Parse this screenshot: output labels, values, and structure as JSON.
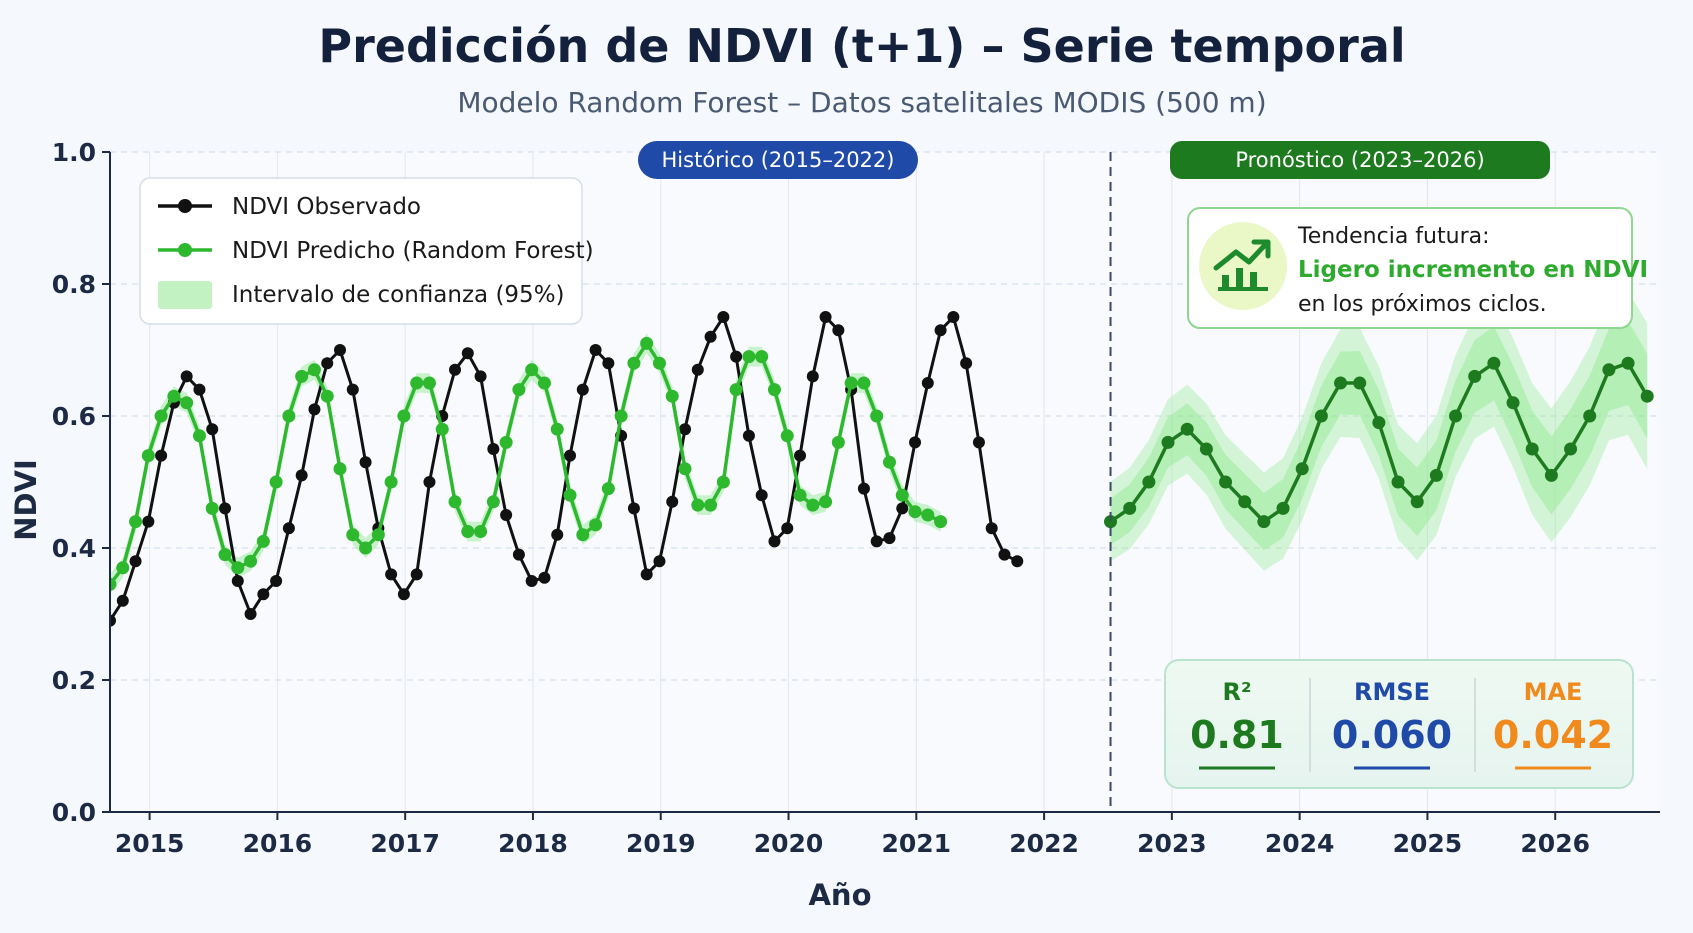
{
  "chart_data": {
    "type": "line",
    "title": "Predicción de NDVI (t+1) – Serie temporal",
    "subtitle": "Modelo Random Forest – Datos satelitales MODIS (500 m)",
    "xlabel": "Año",
    "ylabel": "NDVI",
    "x_ticks": [
      "2015",
      "2016",
      "2017",
      "2018",
      "2019",
      "2020",
      "2021",
      "2022",
      "2023",
      "2024",
      "2025",
      "2026"
    ],
    "ylim": [
      0.0,
      1.0
    ],
    "y_ticks": [
      "0.0",
      "0.2",
      "0.4",
      "0.6",
      "0.8",
      "1.0"
    ],
    "grid": true,
    "legend_position": "top-left",
    "forecast_start": 2022.65,
    "period_labels": {
      "historical": "Histórico (2015–2022)",
      "forecast": "Pronóstico (2023–2026)"
    },
    "legend": {
      "observed": "NDVI Observado",
      "predicted": "NDVI Predicho (Random Forest)",
      "ci": "Intervalo de confianza (95%)"
    },
    "series": [
      {
        "name": "NDVI Observado",
        "color": "#111111",
        "points": [
          [
            2014.82,
            0.29
          ],
          [
            2014.92,
            0.32
          ],
          [
            2015.02,
            0.38
          ],
          [
            2015.12,
            0.44
          ],
          [
            2015.22,
            0.54
          ],
          [
            2015.32,
            0.62
          ],
          [
            2015.42,
            0.66
          ],
          [
            2015.52,
            0.64
          ],
          [
            2015.62,
            0.58
          ],
          [
            2015.72,
            0.46
          ],
          [
            2015.82,
            0.35
          ],
          [
            2015.92,
            0.3
          ],
          [
            2016.02,
            0.33
          ],
          [
            2016.12,
            0.35
          ],
          [
            2016.22,
            0.43
          ],
          [
            2016.32,
            0.51
          ],
          [
            2016.42,
            0.61
          ],
          [
            2016.52,
            0.68
          ],
          [
            2016.62,
            0.7
          ],
          [
            2016.72,
            0.64
          ],
          [
            2016.82,
            0.53
          ],
          [
            2016.92,
            0.43
          ],
          [
            2017.02,
            0.36
          ],
          [
            2017.12,
            0.33
          ],
          [
            2017.22,
            0.36
          ],
          [
            2017.32,
            0.5
          ],
          [
            2017.42,
            0.6
          ],
          [
            2017.52,
            0.67
          ],
          [
            2017.62,
            0.695
          ],
          [
            2017.72,
            0.66
          ],
          [
            2017.82,
            0.55
          ],
          [
            2017.92,
            0.45
          ],
          [
            2018.02,
            0.39
          ],
          [
            2018.12,
            0.35
          ],
          [
            2018.22,
            0.355
          ],
          [
            2018.32,
            0.42
          ],
          [
            2018.42,
            0.54
          ],
          [
            2018.52,
            0.64
          ],
          [
            2018.62,
            0.7
          ],
          [
            2018.72,
            0.68
          ],
          [
            2018.82,
            0.57
          ],
          [
            2018.92,
            0.46
          ],
          [
            2019.02,
            0.36
          ],
          [
            2019.12,
            0.38
          ],
          [
            2019.22,
            0.47
          ],
          [
            2019.32,
            0.58
          ],
          [
            2019.42,
            0.67
          ],
          [
            2019.52,
            0.72
          ],
          [
            2019.62,
            0.75
          ],
          [
            2019.72,
            0.69
          ],
          [
            2019.82,
            0.57
          ],
          [
            2019.92,
            0.48
          ],
          [
            2020.02,
            0.41
          ],
          [
            2020.12,
            0.43
          ],
          [
            2020.22,
            0.54
          ],
          [
            2020.32,
            0.66
          ],
          [
            2020.42,
            0.75
          ],
          [
            2020.52,
            0.73
          ],
          [
            2020.62,
            0.64
          ],
          [
            2020.72,
            0.49
          ],
          [
            2020.82,
            0.41
          ],
          [
            2020.92,
            0.415
          ],
          [
            2021.02,
            0.46
          ],
          [
            2021.12,
            0.56
          ],
          [
            2021.22,
            0.65
          ],
          [
            2021.32,
            0.73
          ],
          [
            2021.42,
            0.75
          ],
          [
            2021.52,
            0.68
          ],
          [
            2021.62,
            0.56
          ],
          [
            2021.72,
            0.43
          ],
          [
            2021.82,
            0.39
          ],
          [
            2021.92,
            0.38
          ]
        ]
      },
      {
        "name": "NDVI Predicho (Random Forest)",
        "color": "#2eb82e",
        "points": [
          [
            2014.82,
            0.345
          ],
          [
            2014.92,
            0.37
          ],
          [
            2015.02,
            0.44
          ],
          [
            2015.12,
            0.54
          ],
          [
            2015.22,
            0.6
          ],
          [
            2015.32,
            0.63
          ],
          [
            2015.42,
            0.62
          ],
          [
            2015.52,
            0.57
          ],
          [
            2015.62,
            0.46
          ],
          [
            2015.72,
            0.39
          ],
          [
            2015.82,
            0.37
          ],
          [
            2015.92,
            0.38
          ],
          [
            2016.02,
            0.41
          ],
          [
            2016.12,
            0.5
          ],
          [
            2016.22,
            0.6
          ],
          [
            2016.32,
            0.66
          ],
          [
            2016.42,
            0.67
          ],
          [
            2016.52,
            0.63
          ],
          [
            2016.62,
            0.52
          ],
          [
            2016.72,
            0.42
          ],
          [
            2016.82,
            0.4
          ],
          [
            2016.92,
            0.42
          ],
          [
            2017.02,
            0.5
          ],
          [
            2017.12,
            0.6
          ],
          [
            2017.22,
            0.65
          ],
          [
            2017.32,
            0.65
          ],
          [
            2017.42,
            0.58
          ],
          [
            2017.52,
            0.47
          ],
          [
            2017.62,
            0.425
          ],
          [
            2017.72,
            0.425
          ],
          [
            2017.82,
            0.47
          ],
          [
            2017.92,
            0.56
          ],
          [
            2018.02,
            0.64
          ],
          [
            2018.12,
            0.67
          ],
          [
            2018.22,
            0.65
          ],
          [
            2018.32,
            0.58
          ],
          [
            2018.42,
            0.48
          ],
          [
            2018.52,
            0.42
          ],
          [
            2018.62,
            0.435
          ],
          [
            2018.72,
            0.49
          ],
          [
            2018.82,
            0.6
          ],
          [
            2018.92,
            0.68
          ],
          [
            2019.02,
            0.71
          ],
          [
            2019.12,
            0.68
          ],
          [
            2019.22,
            0.63
          ],
          [
            2019.32,
            0.52
          ],
          [
            2019.42,
            0.465
          ],
          [
            2019.52,
            0.465
          ],
          [
            2019.62,
            0.5
          ],
          [
            2019.72,
            0.64
          ],
          [
            2019.82,
            0.69
          ],
          [
            2019.92,
            0.69
          ],
          [
            2020.02,
            0.64
          ],
          [
            2020.12,
            0.57
          ],
          [
            2020.22,
            0.48
          ],
          [
            2020.32,
            0.465
          ],
          [
            2020.42,
            0.47
          ],
          [
            2020.52,
            0.56
          ],
          [
            2020.62,
            0.65
          ],
          [
            2020.72,
            0.65
          ],
          [
            2020.82,
            0.6
          ],
          [
            2020.92,
            0.53
          ],
          [
            2021.02,
            0.48
          ],
          [
            2021.12,
            0.455
          ],
          [
            2021.22,
            0.45
          ],
          [
            2021.32,
            0.44
          ]
        ]
      },
      {
        "name": "Forecast",
        "color": "#1e7a1e",
        "points": [
          [
            2022.65,
            0.44
          ],
          [
            2022.8,
            0.46
          ],
          [
            2022.95,
            0.5
          ],
          [
            2023.1,
            0.56
          ],
          [
            2023.25,
            0.58
          ],
          [
            2023.4,
            0.55
          ],
          [
            2023.55,
            0.5
          ],
          [
            2023.7,
            0.47
          ],
          [
            2023.85,
            0.44
          ],
          [
            2024.0,
            0.46
          ],
          [
            2024.15,
            0.52
          ],
          [
            2024.3,
            0.6
          ],
          [
            2024.45,
            0.65
          ],
          [
            2024.6,
            0.65
          ],
          [
            2024.75,
            0.59
          ],
          [
            2024.9,
            0.5
          ],
          [
            2025.05,
            0.47
          ],
          [
            2025.2,
            0.51
          ],
          [
            2025.35,
            0.6
          ],
          [
            2025.5,
            0.66
          ],
          [
            2025.65,
            0.68
          ],
          [
            2025.8,
            0.62
          ],
          [
            2025.95,
            0.55
          ],
          [
            2026.1,
            0.51
          ],
          [
            2026.25,
            0.55
          ],
          [
            2026.4,
            0.6
          ],
          [
            2026.55,
            0.67
          ],
          [
            2026.7,
            0.68
          ],
          [
            2026.85,
            0.63
          ]
        ]
      }
    ],
    "metrics": [
      {
        "label": "R²",
        "value": "0.81",
        "color": "#1e7a1e"
      },
      {
        "label": "RMSE",
        "value": "0.060",
        "color": "#1f4aa8"
      },
      {
        "label": "MAE",
        "value": "0.042",
        "color": "#f08a1c"
      }
    ],
    "trend_box": {
      "line1": "Tendencia futura:",
      "line2": "Ligero incremento en NDVI",
      "line3": "en los próximos ciclos."
    },
    "icon": "trend-up-icon",
    "colors": {
      "observed": "#111111",
      "predicted": "#2eb82e",
      "forecast": "#1e7a1e",
      "ci": "#8fe88f",
      "historical_badge": "#1f4aa8",
      "forecast_badge": "#1e7a1e"
    }
  }
}
